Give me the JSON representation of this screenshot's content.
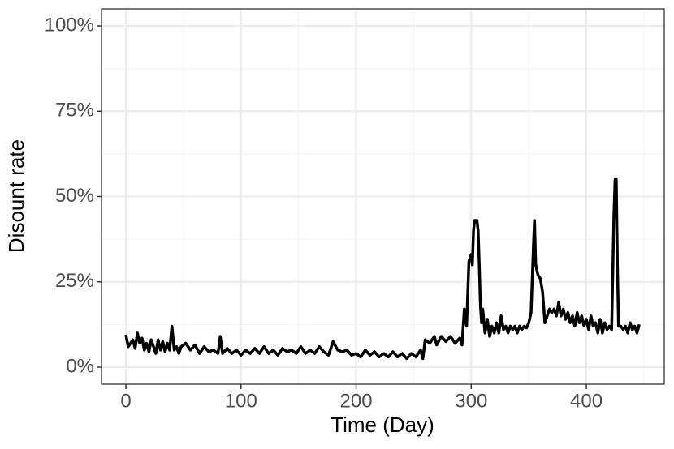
{
  "chart_data": {
    "type": "line",
    "x_label": "Time (Day)",
    "y_label": "Disount rate",
    "color": "#000000",
    "x": [
      0,
      2,
      4,
      6,
      8,
      10,
      12,
      14,
      16,
      18,
      20,
      22,
      24,
      26,
      28,
      30,
      32,
      34,
      36,
      38,
      40,
      42,
      44,
      46,
      48,
      52,
      56,
      60,
      64,
      68,
      72,
      76,
      80,
      82,
      84,
      88,
      92,
      96,
      100,
      104,
      108,
      112,
      116,
      120,
      124,
      128,
      132,
      136,
      140,
      144,
      148,
      152,
      156,
      160,
      164,
      168,
      172,
      176,
      180,
      184,
      188,
      192,
      196,
      200,
      204,
      208,
      212,
      216,
      220,
      224,
      228,
      232,
      236,
      240,
      244,
      248,
      252,
      256,
      258,
      260,
      264,
      268,
      270,
      274,
      278,
      282,
      286,
      290,
      292,
      294,
      296,
      298,
      300,
      301,
      302,
      303,
      305,
      306,
      307,
      308,
      309,
      310,
      312,
      314,
      316,
      318,
      320,
      322,
      324,
      326,
      328,
      330,
      332,
      334,
      336,
      338,
      340,
      342,
      344,
      346,
      348,
      350,
      352,
      354,
      355,
      356,
      358,
      360,
      362,
      364,
      366,
      368,
      370,
      372,
      374,
      376,
      378,
      380,
      382,
      384,
      386,
      388,
      390,
      392,
      394,
      396,
      398,
      400,
      402,
      404,
      406,
      408,
      410,
      412,
      414,
      416,
      418,
      420,
      422,
      424,
      425,
      426,
      427,
      428,
      430,
      432,
      434,
      436,
      438,
      440,
      442,
      444,
      446
    ],
    "values": [
      9.5,
      6,
      7,
      8,
      5.5,
      10,
      7,
      8.5,
      5,
      7,
      4.5,
      8,
      6,
      4,
      8,
      5,
      7.5,
      4.5,
      7,
      5,
      12,
      5,
      6,
      4,
      6,
      7,
      5,
      6.5,
      4,
      6,
      4.5,
      5,
      4,
      9,
      4,
      5.5,
      4,
      5,
      3.5,
      5,
      4,
      5.5,
      4,
      6,
      4,
      5,
      3.5,
      5.5,
      4.5,
      5,
      4,
      6,
      4,
      5,
      4,
      6,
      4.5,
      3.5,
      7.5,
      5,
      4.5,
      5,
      3.5,
      4,
      3,
      5,
      3.5,
      4.5,
      3,
      4,
      3,
      4.5,
      3,
      4,
      2.5,
      4,
      3,
      5,
      2.5,
      8,
      7,
      9,
      6.5,
      9,
      7.5,
      9,
      7,
      8.5,
      6.5,
      17,
      12,
      31,
      33,
      30,
      40,
      43,
      43,
      40,
      30,
      18,
      13,
      17,
      10,
      14,
      9,
      12,
      10,
      13,
      10,
      15,
      11,
      12,
      10,
      12,
      11,
      12,
      10,
      12,
      11,
      12,
      11.5,
      13,
      16,
      35,
      43,
      30,
      27,
      26,
      22,
      13,
      15,
      17,
      16,
      17,
      15,
      19,
      15,
      17,
      14,
      16,
      13,
      15,
      12,
      16,
      13,
      15,
      12,
      14,
      11,
      15,
      12,
      13,
      10,
      14,
      10,
      13,
      11,
      12,
      11,
      45,
      55,
      55,
      30,
      12,
      12,
      11,
      12,
      10,
      13,
      11,
      12,
      10,
      12.5
    ],
    "xlim": [
      -21.2,
      467.7
    ],
    "xticks": [
      0,
      100,
      200,
      300,
      400
    ],
    "xminor": [
      50,
      150,
      250,
      350,
      450
    ],
    "ylim": [
      -5,
      105
    ],
    "yticks": [
      {
        "value": 0,
        "label": "0%"
      },
      {
        "value": 25,
        "label": "25%"
      },
      {
        "value": 50,
        "label": "50%"
      },
      {
        "value": 75,
        "label": "75%"
      },
      {
        "value": 100,
        "label": "100%"
      }
    ],
    "yminor": [
      12.5,
      37.5,
      62.5,
      87.5
    ],
    "grid": true
  }
}
